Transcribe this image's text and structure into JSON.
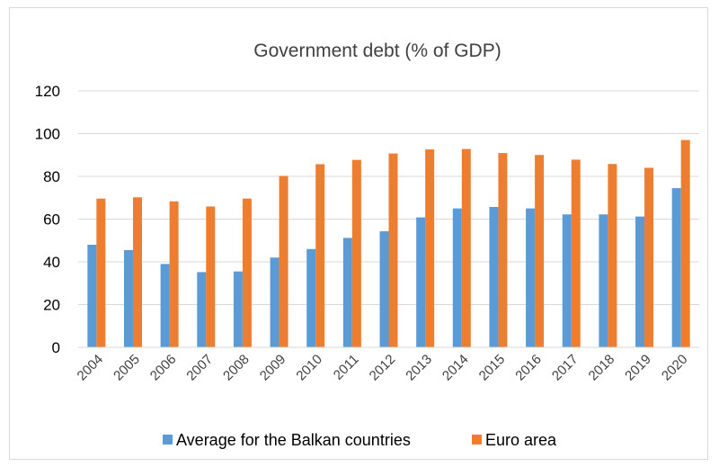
{
  "chart_data": {
    "type": "bar",
    "title": "Government debt (% of GDP)",
    "xlabel": "",
    "ylabel": "",
    "categories": [
      "2004",
      "2005",
      "2006",
      "2007",
      "2008",
      "2009",
      "2010",
      "2011",
      "2012",
      "2013",
      "2014",
      "2015",
      "2016",
      "2017",
      "2018",
      "2019",
      "2020"
    ],
    "series": [
      {
        "name": "Average for the Balkan countries",
        "color": "#5b9bd5",
        "values": [
          48.0,
          45.5,
          39.0,
          35.2,
          35.5,
          42.0,
          46.0,
          51.2,
          54.3,
          60.8,
          65.0,
          65.7,
          65.0,
          62.2,
          62.2,
          61.2,
          74.5
        ]
      },
      {
        "name": "Euro area",
        "color": "#ed7d31",
        "values": [
          69.6,
          70.2,
          68.3,
          65.9,
          69.6,
          80.2,
          85.7,
          87.7,
          90.7,
          92.6,
          92.8,
          90.9,
          90.0,
          87.8,
          85.8,
          84.0,
          97.0
        ]
      }
    ],
    "ylim": [
      0,
      120
    ],
    "yticks": [
      "0",
      "20",
      "40",
      "60",
      "80",
      "100",
      "120"
    ],
    "grid": true,
    "legend_position": "bottom"
  }
}
